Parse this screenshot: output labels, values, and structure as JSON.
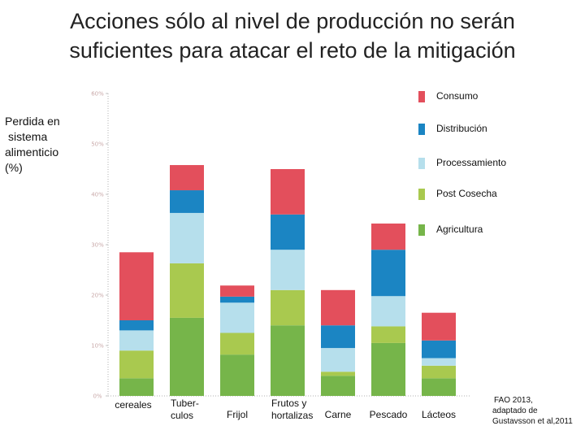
{
  "title": {
    "line1": "Acciones sólo al nivel de producción no serán",
    "line2": "suficientes para atacar el reto de la mitigación"
  },
  "y_axis_label": {
    "line1": "Perdida en",
    "line2": "sistema",
    "line3": "alimenticio",
    "line4": "(%)"
  },
  "source": {
    "line1": "FAO 2013,",
    "line2": "adaptado de",
    "line3": "Gustavsson et al,2011"
  },
  "chart_data": {
    "type": "bar",
    "stacked": true,
    "title": "Acciones sólo al nivel de producción no serán suficientes para atacar el reto de la mitigación",
    "ylabel": "Perdida en sistema alimenticio (%)",
    "xlabel": "",
    "ylim": [
      0,
      60
    ],
    "yticks": [
      0,
      10,
      20,
      30,
      40,
      50,
      60
    ],
    "ytick_labels": [
      "0%",
      "10%",
      "20%",
      "30%",
      "40%",
      "50%",
      "60%"
    ],
    "categories": [
      [
        "cereales"
      ],
      [
        "Tuber-",
        "culos"
      ],
      [
        "Frijol"
      ],
      [
        "Frutos y",
        "hortalizas"
      ],
      [
        "Carne"
      ],
      [
        "Pescado"
      ],
      [
        "Lácteos"
      ]
    ],
    "series": [
      {
        "name": "Agricultura",
        "color": "#76b54a",
        "values": [
          3.5,
          15.5,
          8.2,
          14,
          4,
          10.5,
          3.5
        ]
      },
      {
        "name": "Post Cosecha",
        "color": "#a9c94f",
        "values": [
          5.5,
          10.8,
          4.3,
          7,
          0.8,
          3.3,
          2.5
        ]
      },
      {
        "name": "Processamiento",
        "color": "#b6dfec",
        "values": [
          4,
          10,
          6,
          8,
          4.7,
          6,
          1.5
        ]
      },
      {
        "name": "Distribución",
        "color": "#1b85c3",
        "values": [
          2,
          4.5,
          1.2,
          7,
          4.5,
          9.2,
          3.5
        ]
      },
      {
        "name": "Consumo",
        "color": "#e34f5c",
        "values": [
          13.5,
          5,
          2.2,
          9,
          7,
          5.2,
          5.5
        ]
      }
    ],
    "legend_order": [
      "Consumo",
      "Distribución",
      "Processamiento",
      "Post Cosecha",
      "Agricultura"
    ],
    "legend_position": "top-right",
    "grid": false
  }
}
